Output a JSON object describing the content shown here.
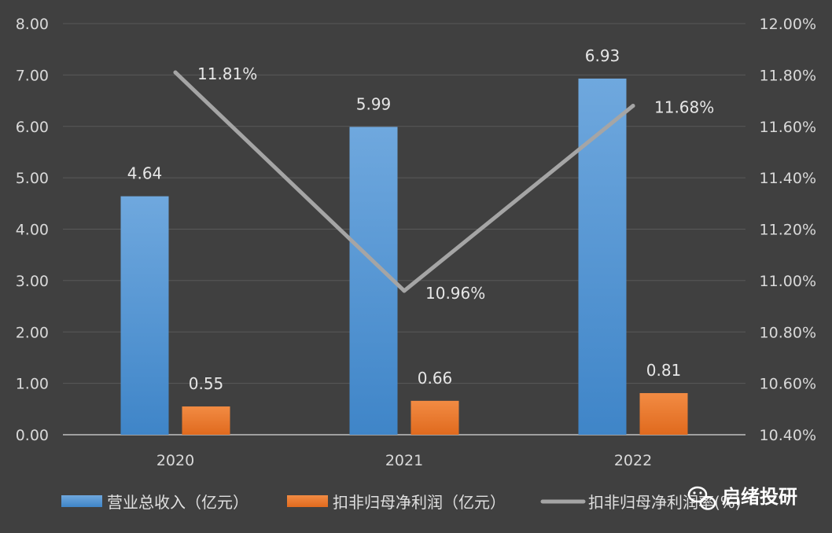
{
  "chart_data": {
    "type": "bar",
    "categories": [
      "2020",
      "2021",
      "2022"
    ],
    "series": [
      {
        "name": "营业总收入（亿元）",
        "type": "bar",
        "axis": "left",
        "color": "#5b9bd5",
        "values": [
          4.64,
          5.99,
          6.93
        ],
        "labels": [
          "4.64",
          "5.99",
          "6.93"
        ]
      },
      {
        "name": "扣非归母净利润（亿元）",
        "type": "bar",
        "axis": "left",
        "color": "#ed7d31",
        "values": [
          0.55,
          0.66,
          0.81
        ],
        "labels": [
          "0.55",
          "0.66",
          "0.81"
        ]
      },
      {
        "name": "扣非归母净利润率(%)",
        "type": "line",
        "axis": "right",
        "color": "#a5a5a5",
        "values": [
          11.81,
          10.96,
          11.68
        ],
        "labels": [
          "11.81%",
          "10.96%",
          "11.68%"
        ]
      }
    ],
    "left_axis": {
      "min": 0,
      "max": 8,
      "step": 1,
      "ticks": [
        "0.00",
        "1.00",
        "2.00",
        "3.00",
        "4.00",
        "5.00",
        "6.00",
        "7.00",
        "8.00"
      ]
    },
    "right_axis": {
      "min": 10.4,
      "max": 12.0,
      "step": 0.2,
      "ticks": [
        "10.40%",
        "10.60%",
        "10.80%",
        "11.00%",
        "11.20%",
        "11.40%",
        "11.60%",
        "11.80%",
        "12.00%"
      ]
    },
    "grid": true,
    "legend_position": "bottom"
  },
  "watermark": {
    "text": "启绪投研",
    "icon": "wechat-icon"
  }
}
